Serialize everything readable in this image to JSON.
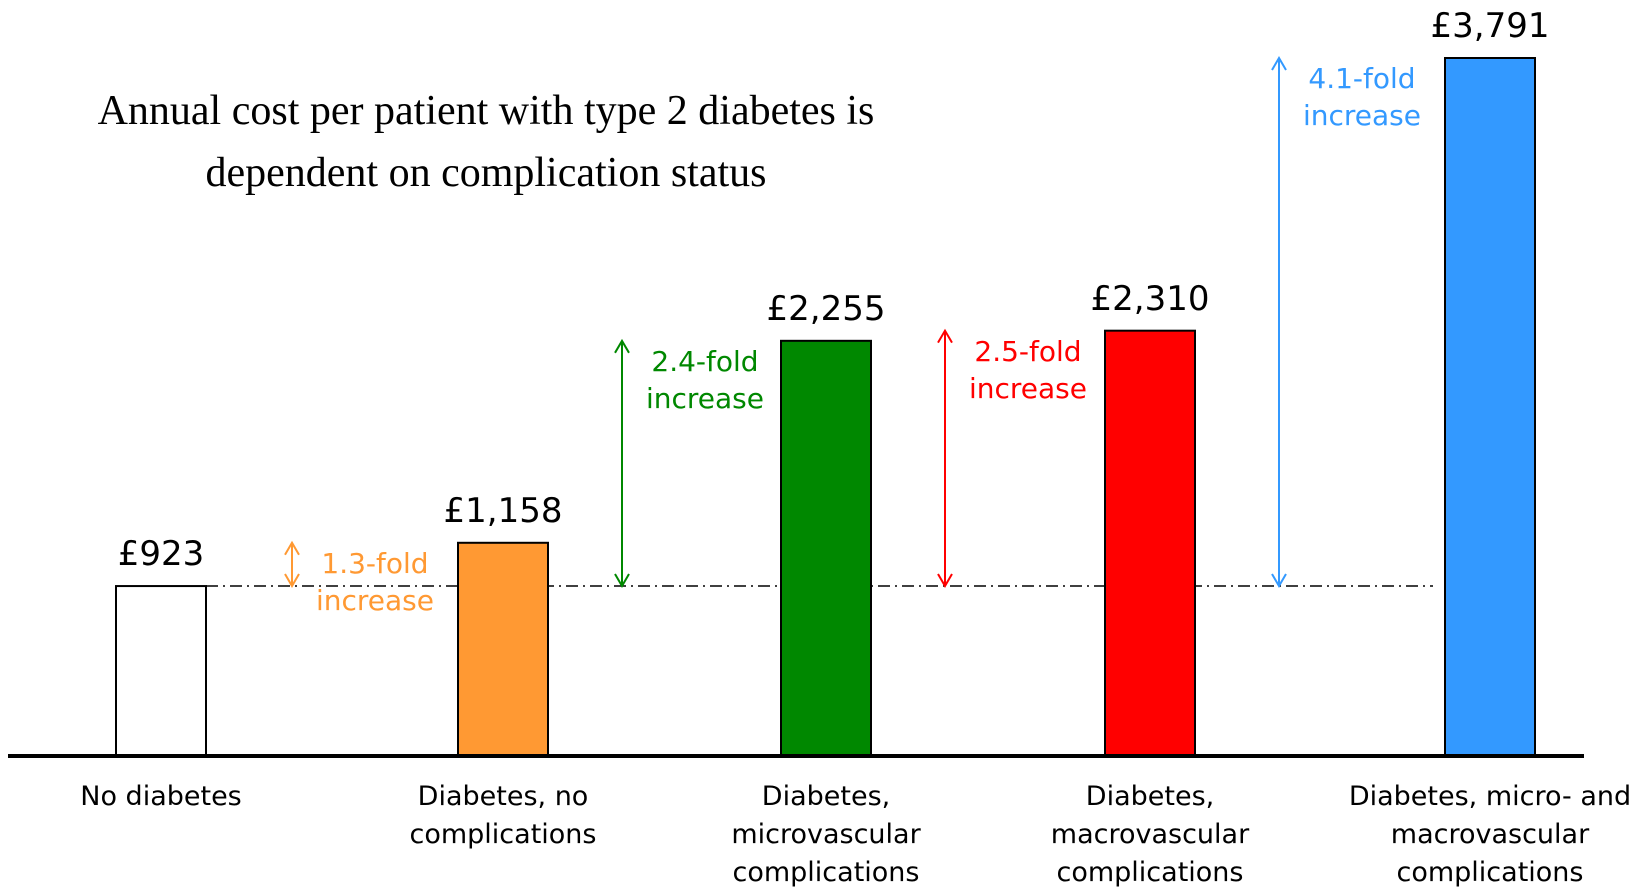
{
  "chart_data": {
    "type": "bar",
    "title": "Annual cost per patient with type 2 diabetes is dependent on complication status",
    "categories": [
      "No diabetes",
      "Diabetes, no complications",
      "Diabetes, microvascular complications",
      "Diabetes, macrovascular complications",
      "Diabetes, micro- and macrovascular complications"
    ],
    "values": [
      923,
      1158,
      2255,
      2310,
      3791
    ],
    "value_labels": [
      "£923",
      "£1,158",
      "£2,255",
      "£2,310",
      "£3,791"
    ],
    "colors": [
      "#ffffff",
      "#ff9933",
      "#008800",
      "#ff0000",
      "#3399ff"
    ],
    "annotations": [
      "1.3-fold increase",
      "2.4-fold increase",
      "2.5-fold increase",
      "4.1-fold increase"
    ]
  }
}
